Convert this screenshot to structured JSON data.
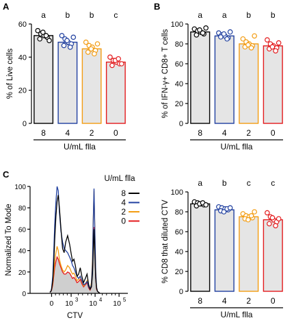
{
  "panels": {
    "A": "A",
    "B": "B",
    "C": "C"
  },
  "chart_data": [
    {
      "panel": "A",
      "type": "bar",
      "ylabel": "% of Live cells",
      "xlabel": "U/mL flla",
      "categories": [
        "8",
        "4",
        "2",
        "0"
      ],
      "values": [
        53,
        49,
        45,
        37
      ],
      "errors": [
        1.5,
        1.8,
        1.8,
        1.5
      ],
      "points": [
        [
          56,
          54,
          53,
          52,
          51,
          55,
          53,
          50
        ],
        [
          53,
          51,
          49,
          48,
          47,
          50,
          46,
          52
        ],
        [
          49,
          47,
          46,
          44,
          43,
          45,
          42,
          48
        ],
        [
          40,
          38,
          37,
          36,
          35,
          38,
          39,
          36
        ]
      ],
      "significance": [
        "a",
        "b",
        "b",
        "c"
      ],
      "colors": [
        "#000000",
        "#1f3f9f",
        "#f39c12",
        "#e31a1c"
      ],
      "bar_fill": "#e5e5e5",
      "ylim": [
        0,
        60
      ],
      "yticks": [
        "0",
        "20",
        "40",
        "60"
      ]
    },
    {
      "panel": "B",
      "type": "bar",
      "ylabel": "% of IFN-γ+ CD8+ T cells",
      "xlabel": "U/mL flla",
      "categories": [
        "8",
        "4",
        "2",
        "0"
      ],
      "values": [
        92,
        88,
        80,
        78
      ],
      "errors": [
        3,
        2.5,
        3,
        3
      ],
      "points": [
        [
          95,
          93,
          92,
          90,
          89,
          94,
          91,
          96
        ],
        [
          91,
          89,
          88,
          86,
          87,
          90,
          85,
          92
        ],
        [
          85,
          82,
          80,
          78,
          77,
          79,
          76,
          88
        ],
        [
          84,
          80,
          78,
          76,
          75,
          77,
          73,
          81
        ]
      ],
      "significance": [
        "a",
        "a",
        "b",
        "b"
      ],
      "colors": [
        "#000000",
        "#1f3f9f",
        "#f39c12",
        "#e31a1c"
      ],
      "bar_fill": "#e5e5e5",
      "ylim": [
        0,
        100
      ],
      "yticks": [
        "0",
        "20",
        "40",
        "60",
        "80",
        "100"
      ]
    },
    {
      "panel": "C-right",
      "type": "bar",
      "ylabel": "% CD8 that diluted CTV",
      "xlabel": "U/mL flla",
      "categories": [
        "8",
        "4",
        "2",
        "0"
      ],
      "values": [
        88,
        82,
        75,
        72
      ],
      "errors": [
        1.5,
        1.5,
        2,
        3
      ],
      "points": [
        [
          90,
          89,
          88,
          87,
          86,
          88,
          89,
          87
        ],
        [
          85,
          84,
          83,
          82,
          81,
          80,
          83,
          84
        ],
        [
          78,
          76,
          75,
          74,
          73,
          72,
          76,
          80
        ],
        [
          79,
          75,
          72,
          70,
          68,
          74,
          66,
          73
        ]
      ],
      "significance": [
        "a",
        "b",
        "c",
        "c"
      ],
      "colors": [
        "#000000",
        "#1f3f9f",
        "#f39c12",
        "#e31a1c"
      ],
      "bar_fill": "#e5e5e5",
      "ylim": [
        0,
        100
      ],
      "yticks": [
        "0",
        "20",
        "40",
        "60",
        "80",
        "100"
      ]
    },
    {
      "panel": "C-left",
      "type": "line",
      "title": "U/mL flla",
      "xlabel": "CTV",
      "ylabel": "Normalized To Mode",
      "ylim": [
        0,
        100
      ],
      "yticks": [
        "0",
        "20",
        "40",
        "60",
        "80",
        "100"
      ],
      "xticks": [
        "0",
        "10",
        "10",
        "10"
      ],
      "xtick_exponents": [
        "",
        "3",
        "4",
        "5"
      ],
      "xticks_pos": [
        0,
        1000,
        10000,
        100000
      ],
      "series": [
        {
          "name": "8",
          "color": "#000000",
          "x": [
            -150,
            -50,
            0,
            60,
            110,
            160,
            220,
            280,
            340,
            400,
            480,
            560,
            640,
            720,
            820,
            920,
            1020,
            1140,
            1300,
            1500,
            1750,
            2050,
            2400,
            2800,
            3300,
            3900,
            4600,
            5400,
            6200,
            7000,
            7800,
            8400,
            9000,
            9800,
            10600,
            11500,
            12500,
            14000,
            16000
          ],
          "y": [
            1,
            2,
            4,
            12,
            28,
            50,
            72,
            86,
            92,
            80,
            60,
            42,
            38,
            48,
            54,
            46,
            36,
            30,
            32,
            26,
            16,
            18,
            24,
            16,
            10,
            14,
            18,
            8,
            4,
            6,
            18,
            40,
            60,
            36,
            14,
            5,
            2,
            1,
            0
          ]
        },
        {
          "name": "4",
          "color": "#1f3f9f",
          "x": [
            -150,
            -50,
            0,
            60,
            110,
            160,
            220,
            280,
            340,
            400,
            480,
            560,
            640,
            720,
            820,
            920,
            1020,
            1140,
            1300,
            1500,
            1750,
            2050,
            2400,
            2800,
            3300,
            3900,
            4600,
            5400,
            6200,
            7000,
            7800,
            8400,
            9000,
            9800,
            10600,
            11500,
            12500,
            14000,
            16000
          ],
          "y": [
            1,
            2,
            5,
            16,
            38,
            64,
            86,
            100,
            96,
            76,
            58,
            48,
            42,
            40,
            38,
            34,
            30,
            26,
            24,
            20,
            16,
            14,
            16,
            12,
            8,
            9,
            11,
            6,
            4,
            8,
            28,
            68,
            98,
            56,
            20,
            6,
            2,
            1,
            0
          ]
        },
        {
          "name": "2",
          "color": "#f39c12",
          "x": [
            -150,
            -50,
            0,
            60,
            110,
            160,
            220,
            280,
            340,
            400,
            480,
            560,
            640,
            720,
            820,
            920,
            1020,
            1140,
            1300,
            1500,
            1750,
            2050,
            2400,
            2800,
            3300,
            3900,
            4600,
            5400,
            6200,
            7000,
            7800,
            8400,
            9000,
            9800,
            10600,
            11500,
            12500,
            14000,
            16000
          ],
          "y": [
            1,
            2,
            4,
            10,
            20,
            30,
            38,
            44,
            40,
            32,
            26,
            22,
            20,
            22,
            26,
            24,
            20,
            18,
            19,
            16,
            12,
            13,
            16,
            11,
            7,
            9,
            12,
            6,
            4,
            10,
            34,
            70,
            96,
            58,
            20,
            6,
            2,
            1,
            0
          ]
        },
        {
          "name": "0",
          "color": "#e31a1c",
          "x": [
            -150,
            -50,
            0,
            60,
            110,
            160,
            220,
            280,
            340,
            400,
            480,
            560,
            640,
            720,
            820,
            920,
            1020,
            1140,
            1300,
            1500,
            1750,
            2050,
            2400,
            2800,
            3300,
            3900,
            4600,
            5400,
            6200,
            7000,
            7800,
            8400,
            9000,
            9800,
            10600,
            11500,
            12500,
            14000,
            16000
          ],
          "y": [
            1,
            2,
            3,
            8,
            16,
            24,
            30,
            34,
            32,
            28,
            24,
            20,
            18,
            18,
            20,
            19,
            16,
            14,
            15,
            13,
            10,
            11,
            13,
            9,
            6,
            8,
            10,
            5,
            3,
            6,
            22,
            46,
            62,
            38,
            14,
            4,
            2,
            1,
            0
          ]
        }
      ],
      "fill": {
        "color": "#cfcfcf",
        "x": [
          -150,
          -50,
          0,
          60,
          110,
          160,
          220,
          280,
          340,
          400,
          480,
          560,
          640,
          720,
          820,
          920,
          1020,
          1140,
          1300,
          1500,
          1750,
          2050,
          2400,
          2800,
          3300,
          3900,
          4600,
          5400,
          6200,
          7000,
          7800,
          8400,
          9000,
          9800,
          10600,
          11500,
          12500,
          14000,
          16000
        ],
        "y": [
          1,
          2,
          3,
          8,
          16,
          24,
          30,
          34,
          32,
          28,
          24,
          20,
          18,
          18,
          20,
          19,
          16,
          14,
          15,
          13,
          10,
          11,
          13,
          9,
          6,
          8,
          10,
          5,
          3,
          6,
          22,
          46,
          62,
          38,
          14,
          4,
          2,
          1,
          0
        ]
      }
    }
  ]
}
